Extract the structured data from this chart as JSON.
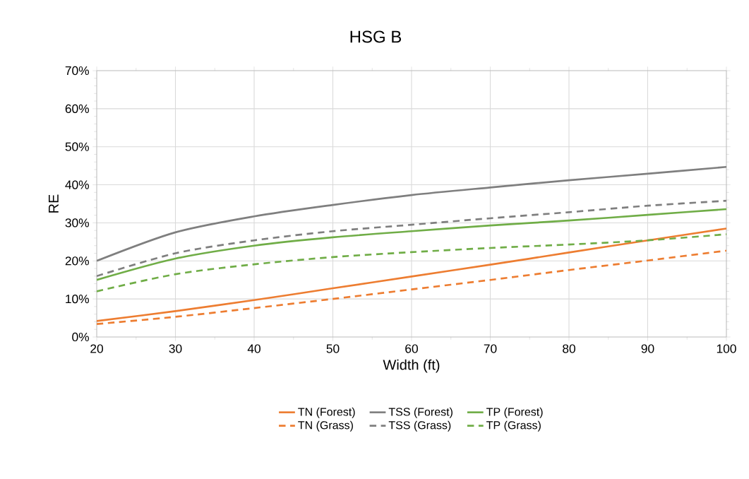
{
  "chart_data": {
    "type": "line",
    "title": "HSG B",
    "xlabel": "Width (ft)",
    "ylabel": "RE",
    "x": [
      20,
      30,
      40,
      50,
      60,
      70,
      80,
      90,
      100
    ],
    "xlim": [
      20,
      100
    ],
    "xticks": [
      20,
      30,
      40,
      50,
      60,
      70,
      80,
      90,
      100
    ],
    "ylim": [
      0,
      70
    ],
    "yticks": [
      {
        "value": 0,
        "label": "0%"
      },
      {
        "value": 10,
        "label": "10%"
      },
      {
        "value": 20,
        "label": "20%"
      },
      {
        "value": 30,
        "label": "30%"
      },
      {
        "value": 40,
        "label": "40%"
      },
      {
        "value": 50,
        "label": "50%"
      },
      {
        "value": 60,
        "label": "60%"
      },
      {
        "value": 70,
        "label": "70%"
      }
    ],
    "grid": true,
    "legend": "bottom",
    "series": [
      {
        "name": "TN (Forest)",
        "color": "#ed7d31",
        "line_style": "solid",
        "values": [
          4.2,
          6.8,
          9.7,
          12.8,
          15.9,
          19,
          22.2,
          25.4,
          28.5
        ]
      },
      {
        "name": "TSS (Forest)",
        "color": "#7f7f7f",
        "line_style": "solid",
        "values": [
          20,
          27.5,
          31.7,
          34.7,
          37.3,
          39.3,
          41.2,
          42.9,
          44.7
        ]
      },
      {
        "name": "TP (Forest)",
        "color": "#70ad47",
        "line_style": "solid",
        "values": [
          15,
          20.6,
          24,
          26.2,
          27.8,
          29.3,
          30.6,
          32.1,
          33.6
        ]
      },
      {
        "name": "TN (Grass)",
        "color": "#ed7d31",
        "line_style": "dashed",
        "values": [
          3.4,
          5.3,
          7.6,
          10,
          12.5,
          15,
          17.6,
          20.1,
          22.7
        ]
      },
      {
        "name": "TSS (Grass)",
        "color": "#7f7f7f",
        "line_style": "dashed",
        "values": [
          16,
          22,
          25.4,
          27.8,
          29.5,
          31.2,
          32.8,
          34.5,
          35.8
        ]
      },
      {
        "name": "TP (Grass)",
        "color": "#70ad47",
        "line_style": "dashed",
        "values": [
          12,
          16.5,
          19.1,
          21,
          22.3,
          23.4,
          24.3,
          25.4,
          27
        ]
      }
    ]
  }
}
